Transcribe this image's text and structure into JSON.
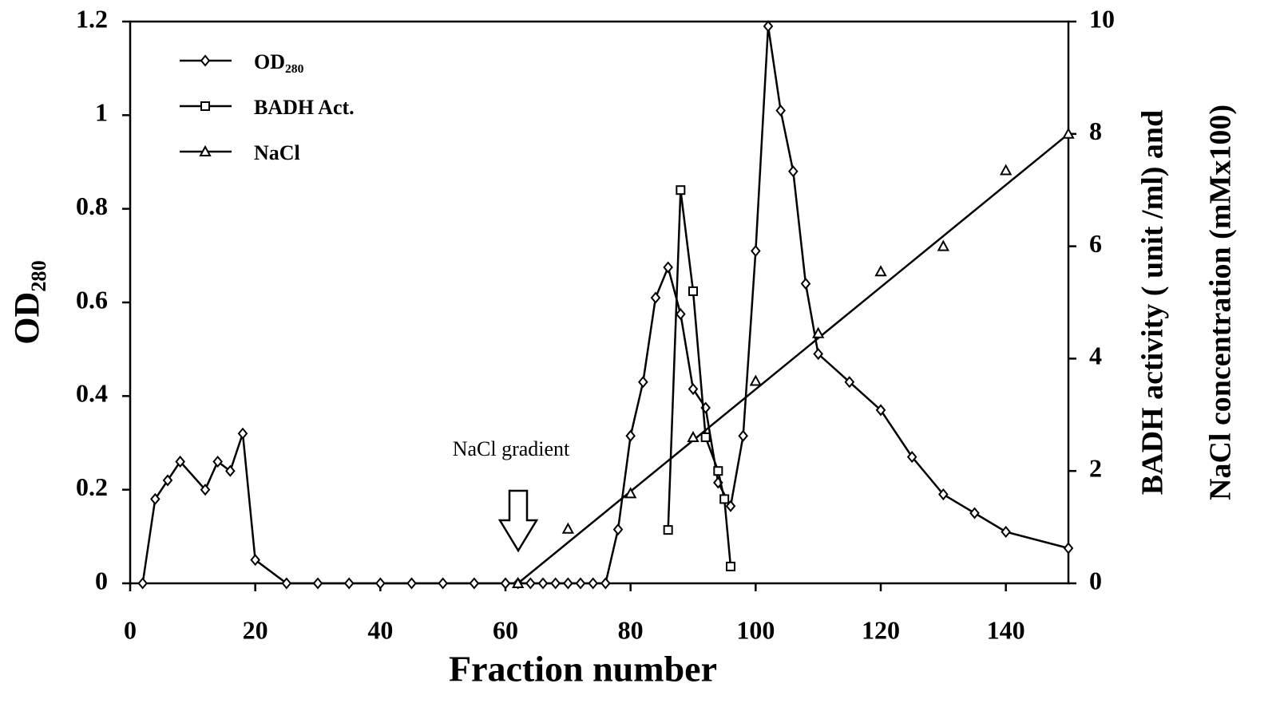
{
  "chart_data": {
    "type": "line",
    "xlabel": "Fraction  number",
    "ylabel": "OD₂₈₀",
    "y2label": [
      "BADH activity ( unit /ml) and",
      "NaCl concentration (mMx100)"
    ],
    "annotation": "NaCl gradient",
    "xlim": [
      0,
      150
    ],
    "xticks": [
      0,
      20,
      40,
      60,
      80,
      100,
      120,
      140
    ],
    "ylim": [
      0,
      1.2
    ],
    "yticks": [
      0,
      0.2,
      0.4,
      0.6,
      0.8,
      1,
      1.2
    ],
    "y2lim": [
      0,
      10
    ],
    "y2ticks": [
      0,
      2,
      4,
      6,
      8,
      10
    ],
    "legend": "upper left",
    "series": [
      {
        "name": "OD₂₈₀",
        "color": "#000000",
        "marker": "diamond",
        "x": [
          2,
          4,
          6,
          8,
          12,
          14,
          16,
          18,
          20,
          25,
          30,
          35,
          40,
          45,
          50,
          55,
          60,
          62,
          64,
          66,
          68,
          70,
          72,
          74,
          76,
          78,
          80,
          82,
          84,
          86,
          88,
          90,
          92,
          94,
          96,
          98,
          100,
          102,
          104,
          106,
          108,
          110,
          115,
          120,
          125,
          130,
          135,
          140,
          150
        ],
        "values": [
          0,
          0.18,
          0.22,
          0.26,
          0.2,
          0.26,
          0.24,
          0.32,
          0.05,
          0,
          0,
          0,
          0,
          0,
          0,
          0,
          0,
          0,
          0,
          0,
          0,
          0,
          0,
          0,
          0,
          0.115,
          0.315,
          0.43,
          0.61,
          0.675,
          0.575,
          0.415,
          0.375,
          0.215,
          0.165,
          0.315,
          0.71,
          1.19,
          1.01,
          0.88,
          0.64,
          0.49,
          0.43,
          0.37,
          0.27,
          0.19,
          0.15,
          0.11,
          0.075
        ]
      },
      {
        "name": "BADH Act.",
        "color": "#000000",
        "marker": "square",
        "axis": "y2",
        "x": [
          86,
          88,
          90,
          92,
          94,
          95,
          96
        ],
        "values": [
          0.95,
          7.0,
          5.2,
          2.6,
          2.0,
          1.5,
          0.3
        ]
      },
      {
        "name": "NaCl",
        "color": "#000000",
        "marker": "triangle",
        "axis": "y2",
        "line": "first-to-last",
        "x": [
          62,
          70,
          80,
          90,
          100,
          110,
          120,
          130,
          140,
          150
        ],
        "values": [
          0,
          0.97,
          1.6,
          2.6,
          3.6,
          4.45,
          5.55,
          6.0,
          7.35,
          8
        ]
      }
    ]
  }
}
